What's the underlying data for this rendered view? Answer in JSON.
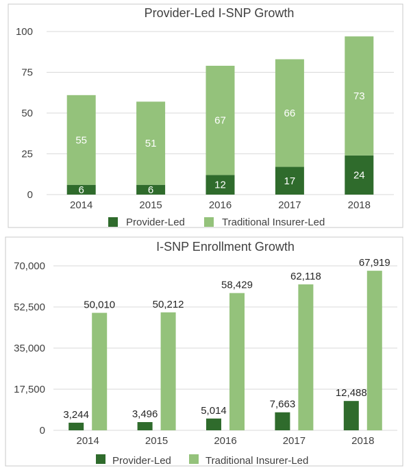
{
  "colors": {
    "provider": "#2f6b2c",
    "traditional": "#94c27b",
    "grid": "#d9d9d9",
    "frame": "#c8c8c8",
    "text": "#404040"
  },
  "chart_data": [
    {
      "type": "bar",
      "stacked": true,
      "title": "Provider-Led I-SNP Growth",
      "categories": [
        "2014",
        "2015",
        "2016",
        "2017",
        "2018"
      ],
      "series": [
        {
          "name": "Provider-Led",
          "values": [
            6,
            6,
            12,
            17,
            24
          ]
        },
        {
          "name": "Traditional Insurer-Led",
          "values": [
            55,
            51,
            67,
            66,
            73
          ]
        }
      ],
      "data_labels": [
        [
          "6",
          "6",
          "12",
          "17",
          "24"
        ],
        [
          "55",
          "51",
          "67",
          "66",
          "73"
        ]
      ],
      "ylim": [
        0,
        100
      ],
      "yticks": [
        "0",
        "25",
        "50",
        "75",
        "100"
      ],
      "grid": true,
      "legend": "bottom"
    },
    {
      "type": "bar",
      "stacked": false,
      "title": "I-SNP Enrollment Growth",
      "categories": [
        "2014",
        "2015",
        "2016",
        "2017",
        "2018"
      ],
      "series": [
        {
          "name": "Provider-Led",
          "values": [
            3244,
            3496,
            5014,
            7663,
            12488
          ]
        },
        {
          "name": "Traditional Insurer-Led",
          "values": [
            50010,
            50212,
            58429,
            62118,
            67919
          ]
        }
      ],
      "data_labels": [
        [
          "3,244",
          "3,496",
          "5,014",
          "7,663",
          "12,488"
        ],
        [
          "50,010",
          "50,212",
          "58,429",
          "62,118",
          "67,919"
        ]
      ],
      "ylim": [
        0,
        70000
      ],
      "yticks": [
        "0",
        "17,500",
        "35,000",
        "52,500",
        "70,000"
      ],
      "grid": true,
      "legend": "bottom"
    }
  ]
}
